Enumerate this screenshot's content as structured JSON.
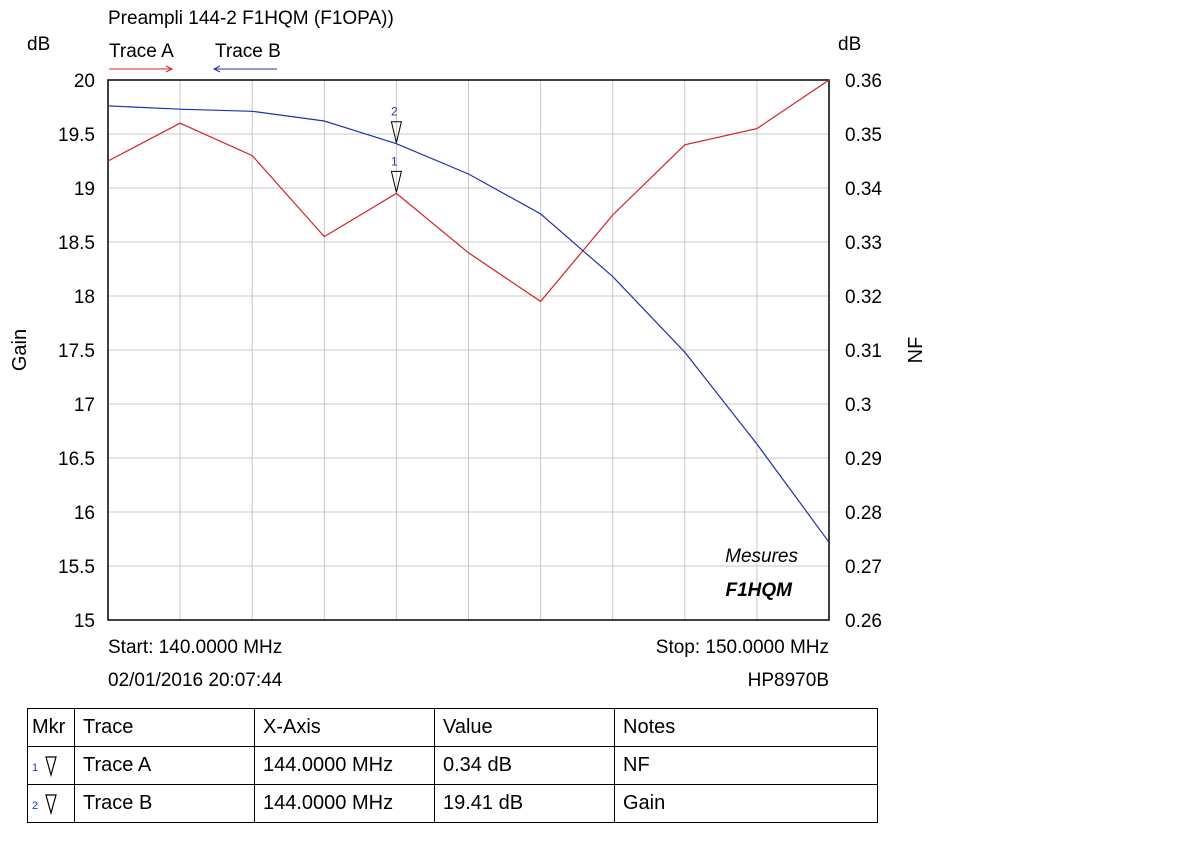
{
  "chart_data": {
    "type": "line",
    "title": "Preampli 144-2 F1HQM (F1OPA))",
    "ylabel_left": "Gain",
    "ylabel_right": "NF",
    "unit_left": "dB",
    "unit_right": "dB",
    "x": [
      140,
      141,
      142,
      143,
      144,
      145,
      146,
      147,
      148,
      149,
      150
    ],
    "xlim": [
      140,
      150
    ],
    "ylim_left": [
      15,
      20
    ],
    "ylim_right": [
      0.26,
      0.36
    ],
    "y_ticks_left": [
      "20",
      "19.5",
      "19",
      "18.5",
      "18",
      "17.5",
      "17",
      "16.5",
      "16",
      "15.5",
      "15"
    ],
    "y_ticks_right": [
      "0.36",
      "0.35",
      "0.34",
      "0.33",
      "0.32",
      "0.31",
      "0.3",
      "0.29",
      "0.28",
      "0.27",
      "0.26"
    ],
    "grid": true,
    "series": [
      {
        "name": "Trace A",
        "axis": "right",
        "color": "#d42020",
        "values": [
          0.345,
          0.352,
          0.346,
          0.331,
          0.339,
          0.328,
          0.319,
          0.335,
          0.348,
          0.351,
          0.36
        ]
      },
      {
        "name": "Trace B",
        "axis": "left",
        "color": "#2030b0",
        "values": [
          19.76,
          19.73,
          19.71,
          19.62,
          19.41,
          19.13,
          18.76,
          18.18,
          17.48,
          16.63,
          15.72
        ]
      }
    ],
    "markers": [
      {
        "label": "1",
        "x": 144
      },
      {
        "label": "2",
        "x": 144
      }
    ],
    "annotations": [
      "Mesures",
      "F1HQM"
    ]
  },
  "footer": {
    "start": "Start: 140.0000 MHz",
    "stop": "Stop: 150.0000 MHz",
    "timestamp": "02/01/2016 20:07:44",
    "instrument": "HP8970B"
  },
  "marker_table": {
    "headers": [
      "Mkr",
      "Trace",
      "X-Axis",
      "Value",
      "Notes"
    ],
    "rows": [
      {
        "mkr": "1",
        "trace": "Trace A",
        "x_axis": "144.0000 MHz",
        "value": "0.34 dB",
        "notes": "NF"
      },
      {
        "mkr": "2",
        "trace": "Trace B",
        "x_axis": "144.0000 MHz",
        "value": "19.41 dB",
        "notes": "Gain"
      }
    ]
  }
}
